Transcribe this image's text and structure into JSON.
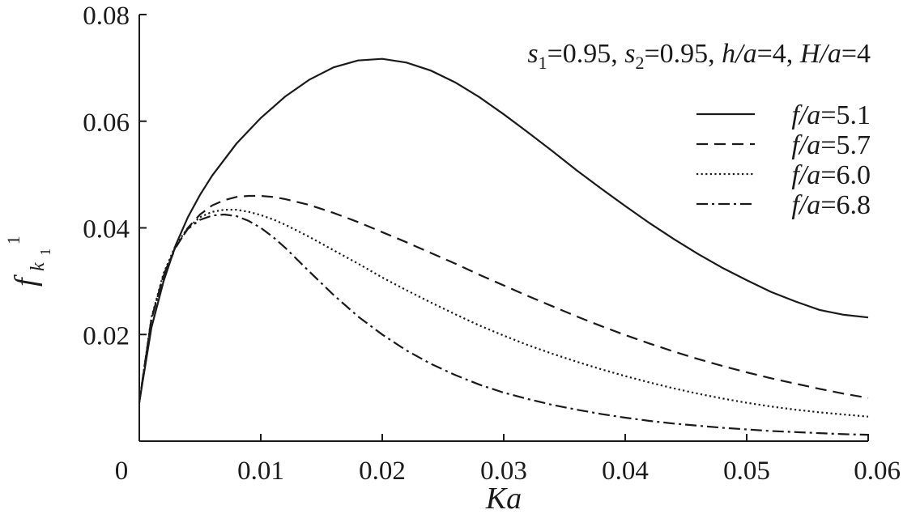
{
  "chart_data": {
    "type": "line",
    "title": "",
    "xlabel": "Ka",
    "ylabel": {
      "base": "f",
      "sub": "k",
      "subsub": "1",
      "sup": "1"
    },
    "xlim": [
      0,
      0.06
    ],
    "ylim": [
      0,
      0.08
    ],
    "x_ticks": [
      0,
      0.01,
      0.02,
      0.03,
      0.04,
      0.05,
      0.06
    ],
    "x_tick_labels": [
      "0",
      "0.01",
      "0.02",
      "0.03",
      "0.04",
      "0.05",
      "0.06"
    ],
    "y_ticks": [
      0.02,
      0.04,
      0.06,
      0.08
    ],
    "y_tick_labels": [
      "0.02",
      "0.04",
      "0.06",
      "0.08"
    ],
    "grid": false,
    "legend_position": "right",
    "annotation": {
      "parts": [
        {
          "t": "s",
          "style": "italic"
        },
        {
          "t": "1",
          "style": "sub"
        },
        {
          "t": "=0.95, ",
          "style": "normal"
        },
        {
          "t": "s",
          "style": "italic"
        },
        {
          "t": "2",
          "style": "sub"
        },
        {
          "t": "=0.95, ",
          "style": "normal"
        },
        {
          "t": "h/a",
          "style": "italic"
        },
        {
          "t": "=4, ",
          "style": "normal"
        },
        {
          "t": "H/a",
          "style": "italic"
        },
        {
          "t": "=4",
          "style": "normal"
        }
      ]
    },
    "series": [
      {
        "name_var": "f/a",
        "name_val": "=5.1",
        "dash": "solid",
        "x": [
          0,
          0.001,
          0.002,
          0.003,
          0.004,
          0.005,
          0.006,
          0.008,
          0.01,
          0.012,
          0.014,
          0.016,
          0.018,
          0.02,
          0.022,
          0.024,
          0.026,
          0.028,
          0.03,
          0.032,
          0.034,
          0.036,
          0.038,
          0.04,
          0.042,
          0.044,
          0.046,
          0.048,
          0.05,
          0.052,
          0.054,
          0.056,
          0.058,
          0.06
        ],
        "y": [
          0.0073,
          0.0213,
          0.03,
          0.0368,
          0.042,
          0.0462,
          0.0498,
          0.0558,
          0.0606,
          0.0646,
          0.0678,
          0.0701,
          0.0714,
          0.0717,
          0.071,
          0.0695,
          0.0673,
          0.0645,
          0.0613,
          0.0579,
          0.0544,
          0.0508,
          0.0474,
          0.0441,
          0.0409,
          0.0379,
          0.0351,
          0.0325,
          0.0302,
          0.028,
          0.0262,
          0.0246,
          0.0237,
          0.0232
        ]
      },
      {
        "name_var": "f/a",
        "name_val": "=5.7",
        "dash": "dashed",
        "x": [
          0,
          0.001,
          0.002,
          0.003,
          0.004,
          0.005,
          0.006,
          0.007,
          0.008,
          0.009,
          0.01,
          0.011,
          0.012,
          0.014,
          0.016,
          0.018,
          0.02,
          0.022,
          0.024,
          0.026,
          0.028,
          0.03,
          0.032,
          0.034,
          0.036,
          0.038,
          0.04,
          0.042,
          0.044,
          0.046,
          0.048,
          0.05,
          0.052,
          0.054,
          0.056,
          0.058,
          0.06
        ],
        "y": [
          0.0073,
          0.023,
          0.031,
          0.0363,
          0.04,
          0.0425,
          0.0442,
          0.0452,
          0.0458,
          0.046,
          0.046,
          0.0458,
          0.0454,
          0.0443,
          0.0428,
          0.0411,
          0.0392,
          0.0373,
          0.0353,
          0.0333,
          0.0312,
          0.0292,
          0.0272,
          0.0253,
          0.0234,
          0.0216,
          0.0199,
          0.0183,
          0.0168,
          0.0154,
          0.0141,
          0.0129,
          0.0118,
          0.0108,
          0.0098,
          0.0089,
          0.0081
        ]
      },
      {
        "name_var": "f/a",
        "name_val": "=6.0",
        "dash": "dotted",
        "x": [
          0,
          0.001,
          0.002,
          0.003,
          0.004,
          0.005,
          0.006,
          0.007,
          0.008,
          0.009,
          0.01,
          0.011,
          0.012,
          0.014,
          0.016,
          0.018,
          0.02,
          0.022,
          0.024,
          0.026,
          0.028,
          0.03,
          0.032,
          0.034,
          0.036,
          0.038,
          0.04,
          0.042,
          0.044,
          0.046,
          0.048,
          0.05,
          0.052,
          0.054,
          0.056,
          0.058,
          0.06
        ],
        "y": [
          0.0073,
          0.0232,
          0.0315,
          0.0368,
          0.04,
          0.042,
          0.043,
          0.0434,
          0.0434,
          0.043,
          0.0424,
          0.0416,
          0.0406,
          0.0383,
          0.0358,
          0.0333,
          0.0307,
          0.0283,
          0.026,
          0.0238,
          0.0217,
          0.0198,
          0.018,
          0.0164,
          0.0149,
          0.0135,
          0.0122,
          0.011,
          0.0099,
          0.0089,
          0.008,
          0.0072,
          0.0065,
          0.0059,
          0.0054,
          0.005,
          0.0046
        ]
      },
      {
        "name_var": "f/a",
        "name_val": "=6.8",
        "dash": "dashdot",
        "x": [
          0,
          0.001,
          0.002,
          0.003,
          0.004,
          0.005,
          0.006,
          0.007,
          0.008,
          0.009,
          0.01,
          0.011,
          0.012,
          0.014,
          0.016,
          0.018,
          0.02,
          0.022,
          0.024,
          0.026,
          0.028,
          0.03,
          0.032,
          0.034,
          0.036,
          0.038,
          0.04,
          0.042,
          0.044,
          0.046,
          0.048,
          0.05,
          0.052,
          0.054,
          0.056,
          0.058,
          0.06
        ],
        "y": [
          0.0073,
          0.0228,
          0.0312,
          0.0365,
          0.0398,
          0.0415,
          0.0423,
          0.0425,
          0.0422,
          0.0413,
          0.04,
          0.0383,
          0.0363,
          0.0318,
          0.0274,
          0.0234,
          0.02,
          0.017,
          0.0145,
          0.0124,
          0.0106,
          0.0091,
          0.0079,
          0.0068,
          0.0059,
          0.0051,
          0.0044,
          0.0038,
          0.0033,
          0.0029,
          0.0025,
          0.0022,
          0.0019,
          0.0017,
          0.0015,
          0.0013,
          0.0012
        ]
      }
    ]
  }
}
